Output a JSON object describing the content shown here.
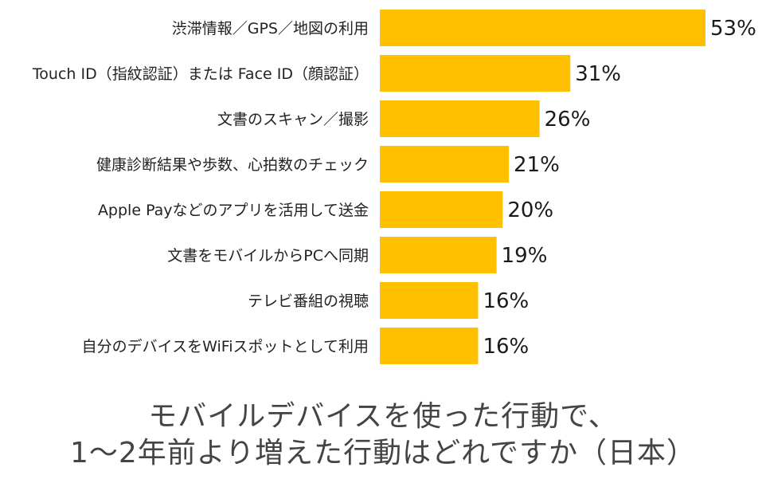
{
  "chart_data": {
    "type": "bar",
    "orientation": "horizontal",
    "title_lines": [
      "モバイルデバイスを使った行動で、",
      "1〜2年前より増えた行動はどれですか（日本）"
    ],
    "categories": [
      "渋滞情報／GPS／地図の利用",
      "Touch ID（指紋認証）または Face ID（顔認証）",
      "文書のスキャン／撮影",
      "健康診断結果や歩数、心拍数のチェック",
      "Apple Payなどのアプリを活用して送金",
      "文書をモバイルからPCへ同期",
      "テレビ番組の視聴",
      "自分のデバイスをWiFiスポットとして利用"
    ],
    "values": [
      53,
      31,
      26,
      21,
      20,
      19,
      16,
      16
    ],
    "value_labels": [
      "53%",
      "31%",
      "26%",
      "21%",
      "20%",
      "19%",
      "16%",
      "16%"
    ],
    "unit": "%",
    "xlim": [
      0,
      53
    ],
    "grid": false,
    "bar_color": "#FFC000"
  }
}
